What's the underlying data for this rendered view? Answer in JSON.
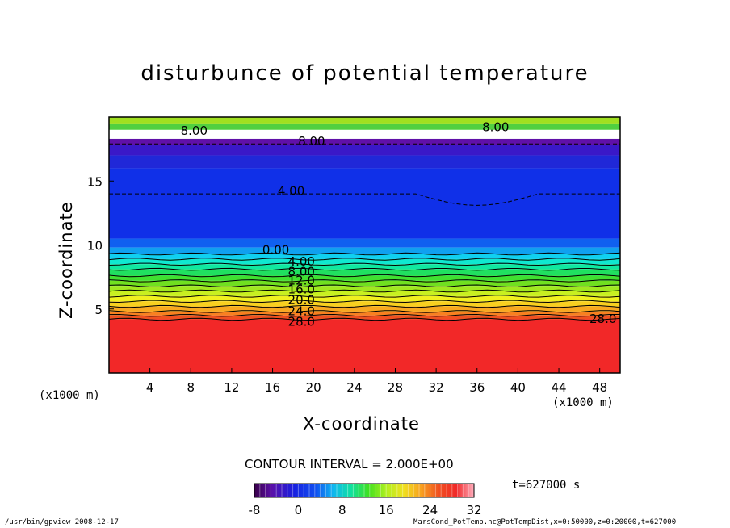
{
  "chart_data": {
    "type": "heatmap",
    "title": "disturbunce of potential temperature",
    "xlabel": "X-coordinate",
    "ylabel": "Z-coordinate",
    "x_unit_left": "(x1000 m)",
    "x_unit_right": "(x1000 m)",
    "xlim": [
      0,
      50
    ],
    "ylim": [
      0,
      20
    ],
    "x_ticks": [
      4,
      8,
      12,
      16,
      20,
      24,
      28,
      32,
      36,
      40,
      44,
      48
    ],
    "y_ticks": [
      5,
      10,
      15
    ],
    "contour_labels": [
      {
        "text": "8.00",
        "x": 18.5,
        "z": 17.8
      },
      {
        "text": "4.00",
        "x": 16.5,
        "z": 13.9
      },
      {
        "text": "0.00",
        "x": 15.0,
        "z": 9.3
      },
      {
        "text": "4.00",
        "x": 17.5,
        "z": 8.4
      },
      {
        "text": "8.00",
        "x": 17.5,
        "z": 7.6
      },
      {
        "text": "12.0",
        "x": 17.5,
        "z": 6.9
      },
      {
        "text": "16.0",
        "x": 17.5,
        "z": 6.2
      },
      {
        "text": "20.0",
        "x": 17.5,
        "z": 5.4
      },
      {
        "text": "24.0",
        "x": 17.5,
        "z": 4.5
      },
      {
        "text": "28.0",
        "x": 17.5,
        "z": 3.7
      },
      {
        "text": "28.0",
        "x": 47.0,
        "z": 3.9
      },
      {
        "text": "8.00",
        "x": 7.0,
        "z": 18.6
      },
      {
        "text": "8.00",
        "x": 36.5,
        "z": 18.9
      }
    ],
    "colorbar": {
      "ticks": [
        -8,
        0,
        8,
        16,
        24,
        32
      ],
      "min": -8,
      "max": 32
    },
    "contour_interval_text": "CONTOUR INTERVAL = 2.000E+00",
    "time_text": "t=627000 s",
    "grid": false
  },
  "footer": {
    "left": "/usr/bin/gpview   2008-12-17",
    "right": "MarsCond_PotTemp.nc@PotTempDist,x=0:50000,z=0:20000,t=627000"
  }
}
